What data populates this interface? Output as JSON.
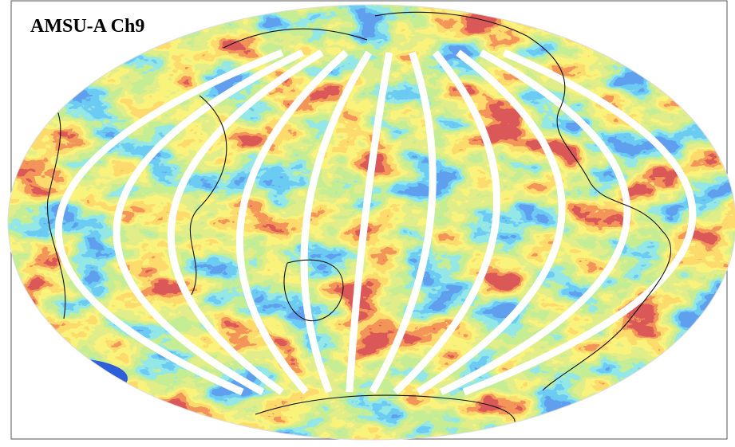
{
  "title": "AMSU-A Ch9"
}
